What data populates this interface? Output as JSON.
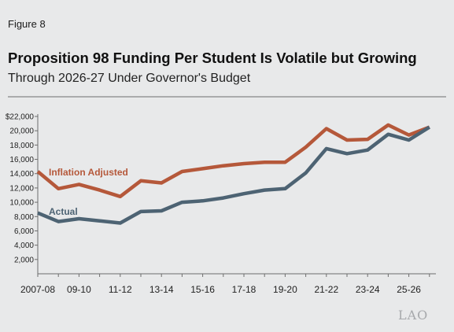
{
  "figure_label": "Figure 8",
  "title": "Proposition 98 Funding Per Student Is Volatile but Growing",
  "subtitle": "Through 2026-27 Under Governor's Budget",
  "logo_text": "LAO",
  "colors": {
    "inflation": "#b5583a",
    "actual": "#4d6373",
    "axis": "#6d6d6d",
    "background": "#e8e9ea"
  },
  "chart_data": {
    "type": "line",
    "x": [
      "2007-08",
      "2008-09",
      "2009-10",
      "2010-11",
      "2011-12",
      "2012-13",
      "2013-14",
      "2014-15",
      "2015-16",
      "2016-17",
      "2017-18",
      "2018-19",
      "2019-20",
      "2020-21",
      "2021-22",
      "2022-23",
      "2023-24",
      "2024-25",
      "2025-26",
      "2026-27"
    ],
    "x_tick_labels": [
      "2007-08",
      "09-10",
      "11-12",
      "13-14",
      "15-16",
      "17-18",
      "19-20",
      "21-22",
      "23-24",
      "25-26"
    ],
    "y_tick_labels": [
      "$22,000",
      "20,000",
      "18,000",
      "16,000",
      "14,000",
      "12,000",
      "10,000",
      "8,000",
      "6,000",
      "4,000",
      "2,000"
    ],
    "ylim": [
      0,
      22000
    ],
    "series": [
      {
        "name": "Inflation Adjusted",
        "values": [
          14300,
          11900,
          12500,
          11700,
          10800,
          13000,
          12700,
          14300,
          14700,
          15100,
          15400,
          15600,
          15600,
          17700,
          20300,
          18700,
          18800,
          20800,
          19400,
          20500
        ]
      },
      {
        "name": "Actual",
        "values": [
          8500,
          7300,
          7700,
          7400,
          7100,
          8700,
          8800,
          10000,
          10200,
          10600,
          11200,
          11700,
          11900,
          14100,
          17500,
          16800,
          17300,
          19500,
          18700,
          20500
        ]
      }
    ],
    "grid": false
  }
}
